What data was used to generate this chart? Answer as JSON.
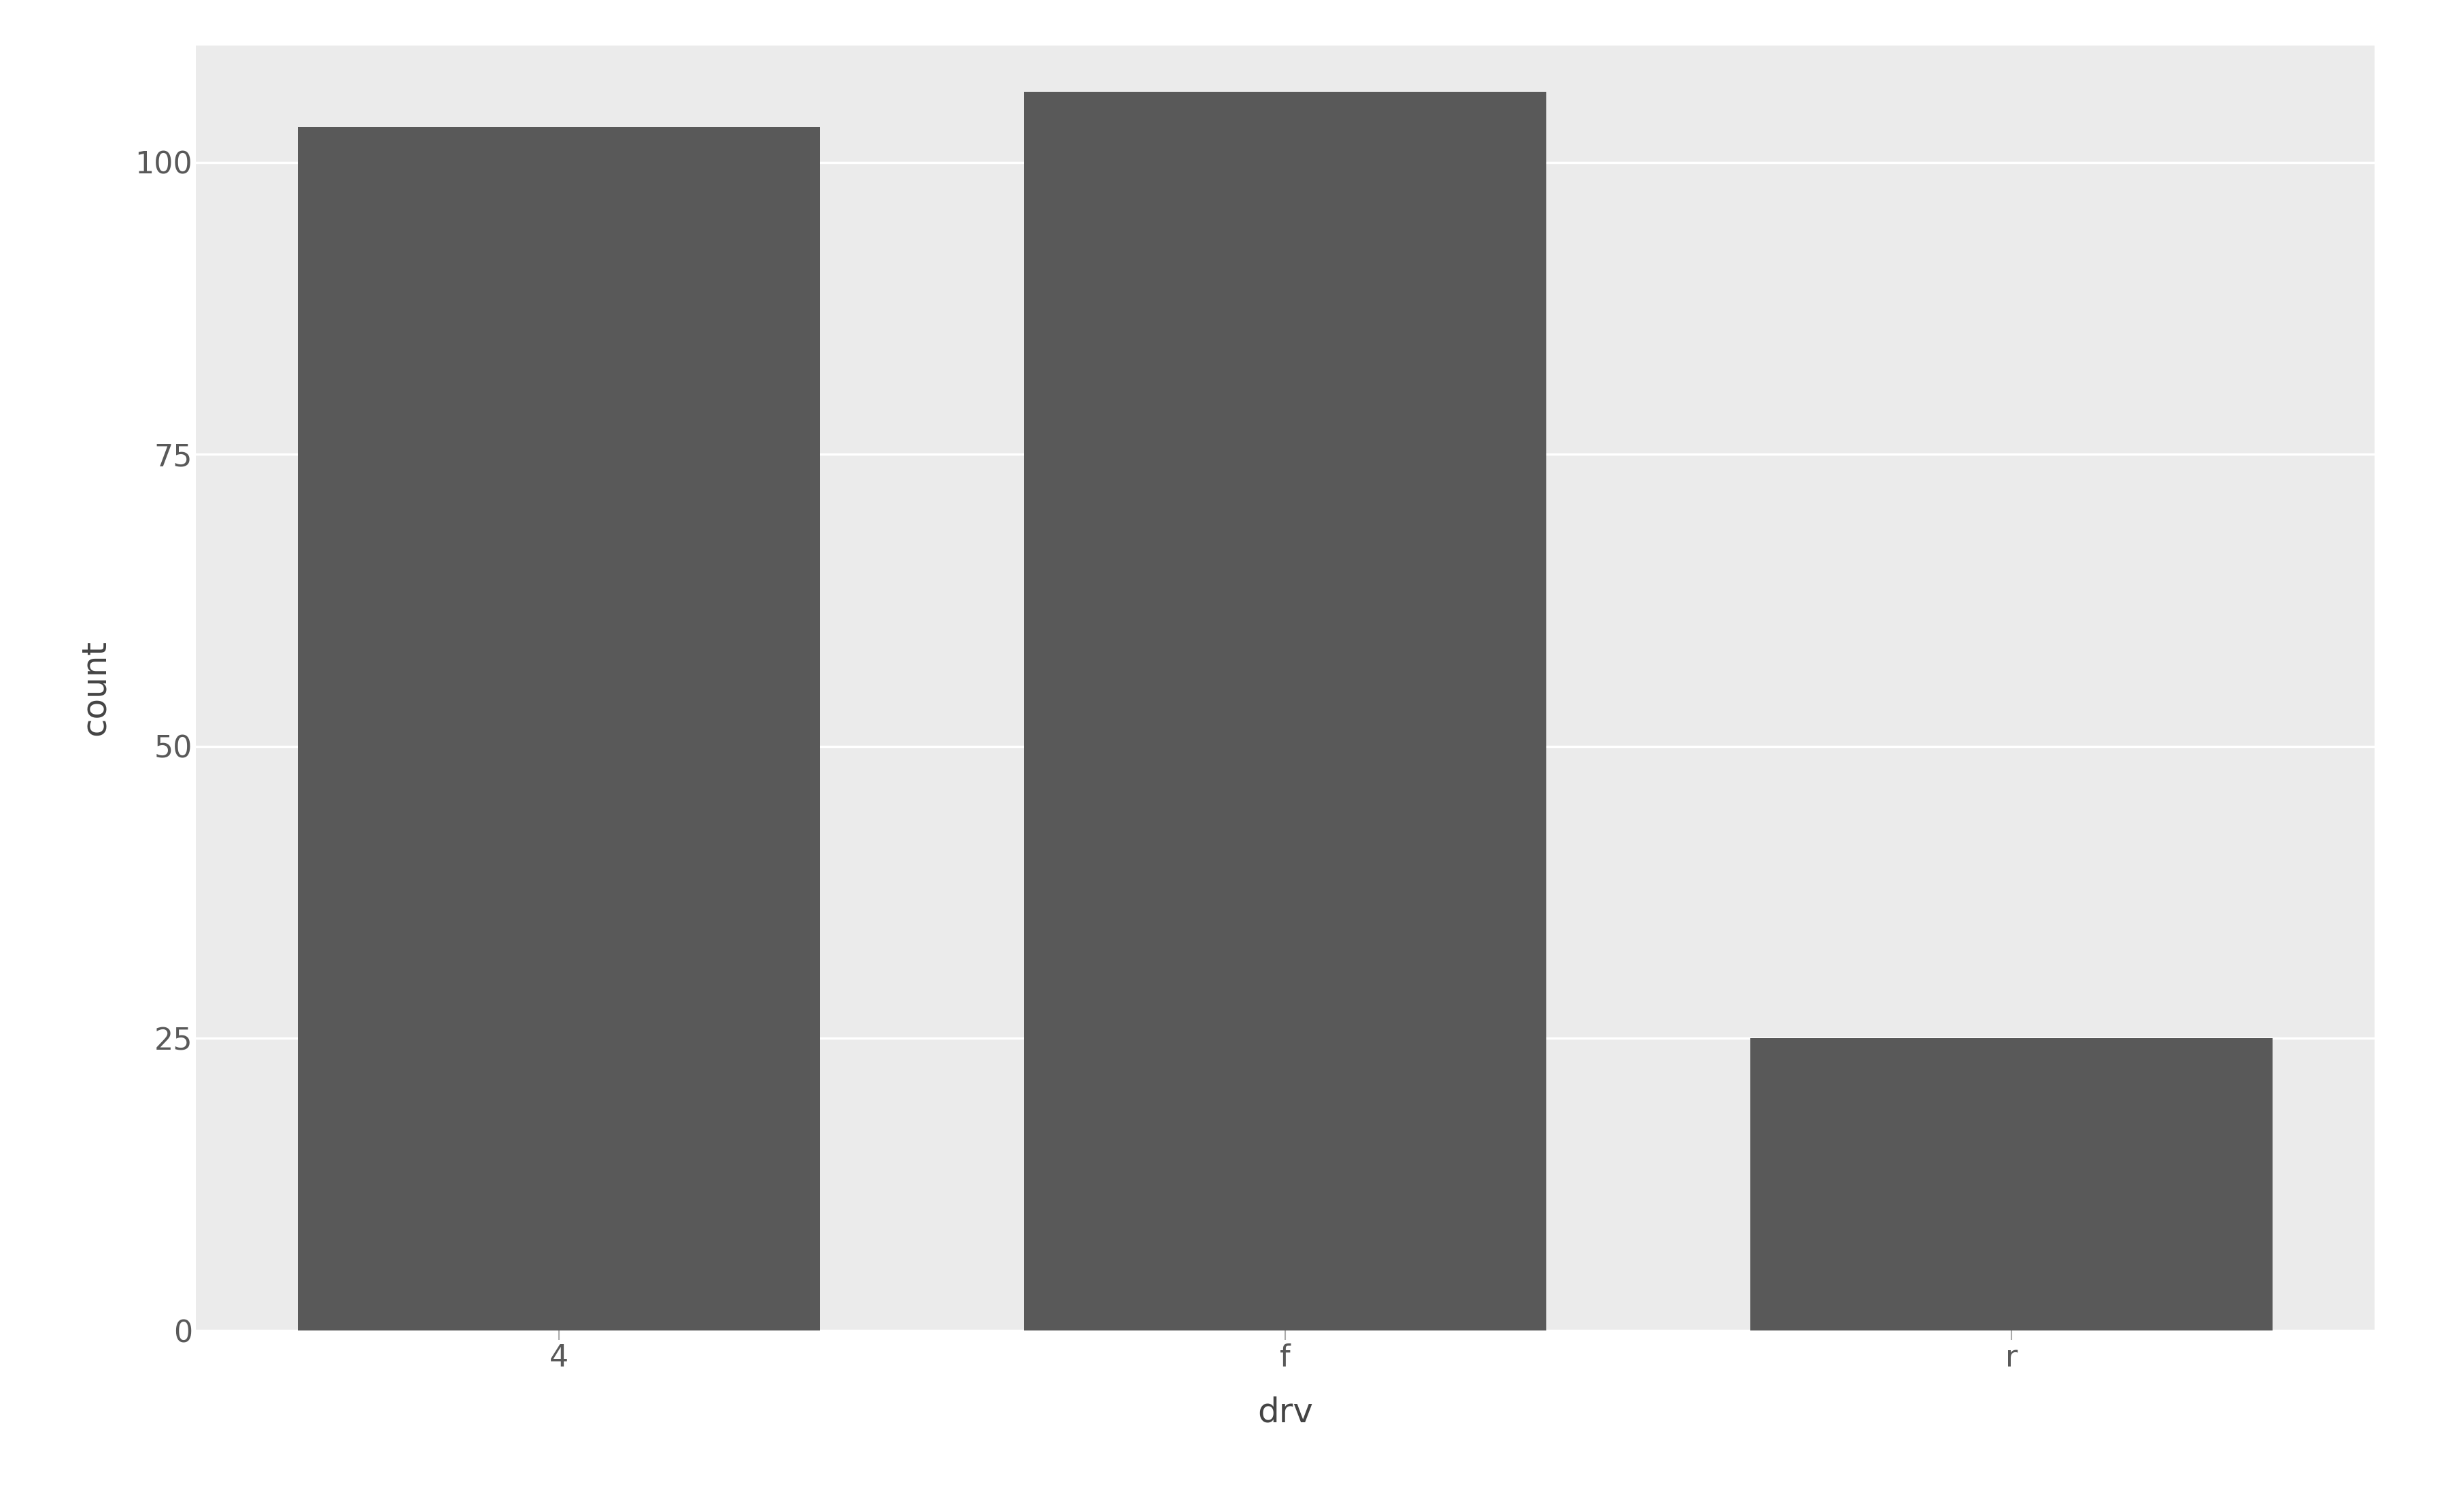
{
  "categories": [
    "4",
    "f",
    "r"
  ],
  "values": [
    103,
    106,
    25
  ],
  "bar_color": "#595959",
  "panel_background": "#EBEBEB",
  "outer_background": "#FFFFFF",
  "grid_color": "#FFFFFF",
  "title": "",
  "xlabel": "drv",
  "ylabel": "count",
  "yticks": [
    0,
    25,
    50,
    75,
    100
  ],
  "ylim": [
    0,
    110
  ],
  "xlabel_fontsize": 36,
  "ylabel_fontsize": 36,
  "tick_fontsize": 32,
  "bar_width": 0.72,
  "tick_color": "#595959",
  "label_color": "#444444"
}
